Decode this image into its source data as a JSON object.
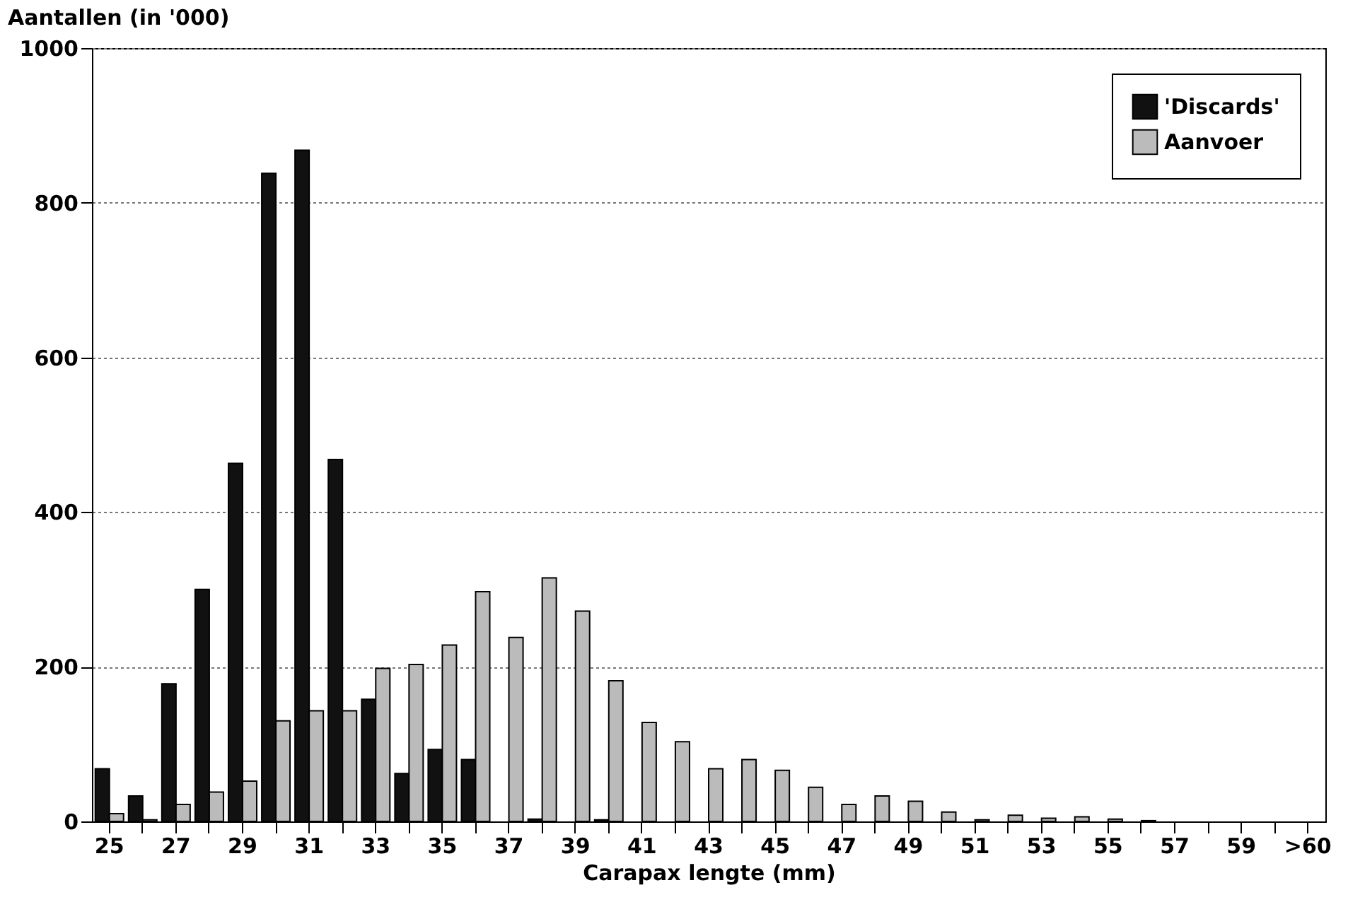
{
  "chart_data": {
    "type": "bar",
    "ylabel": "Aantallen (in '000)",
    "xlabel": "Carapax lengte (mm)",
    "categories": [
      "25",
      null,
      "27",
      null,
      "29",
      null,
      "31",
      null,
      "33",
      null,
      "35",
      null,
      "37",
      null,
      "39",
      null,
      "41",
      null,
      "43",
      null,
      "45",
      null,
      "47",
      null,
      "49",
      null,
      "51",
      null,
      "53",
      null,
      "55",
      null,
      "57",
      null,
      "59",
      null,
      ">60"
    ],
    "series": [
      {
        "name": "'Discards'",
        "color": "#111111",
        "values": [
          68,
          33,
          178,
          300,
          463,
          838,
          868,
          468,
          158,
          62,
          93,
          80,
          0,
          3,
          0,
          2,
          0,
          0,
          0,
          0,
          0,
          0,
          0,
          0,
          0,
          0,
          0,
          0,
          0,
          0,
          0,
          0,
          0,
          0,
          0,
          0,
          0
        ]
      },
      {
        "name": "Aanvoer",
        "color": "#bbbbbb",
        "values": [
          10,
          2,
          22,
          38,
          52,
          130,
          143,
          143,
          198,
          203,
          228,
          297,
          238,
          315,
          272,
          182,
          128,
          103,
          68,
          80,
          66,
          44,
          22,
          33,
          26,
          12,
          2,
          8,
          4,
          6,
          3,
          1,
          0,
          0,
          0,
          0,
          0
        ]
      }
    ],
    "ylim": [
      0,
      1000
    ],
    "yticks": [
      0,
      200,
      400,
      600,
      800,
      1000
    ],
    "grid": "y",
    "legend": "top right"
  }
}
